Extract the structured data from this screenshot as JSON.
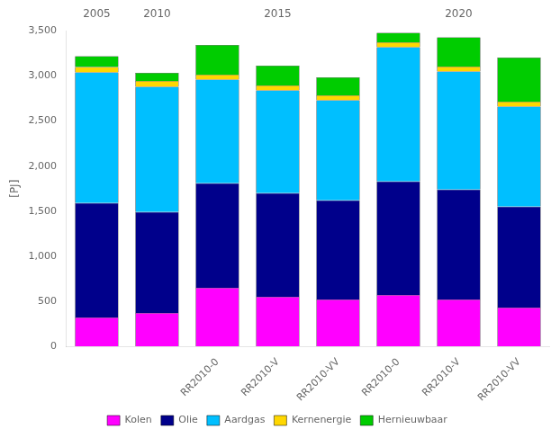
{
  "chart_data": {
    "type": "bar",
    "stacked": true,
    "categories": [
      null,
      null,
      "RR2010-0",
      "RR2010-V",
      "RR2010-VV",
      "RR2010-0",
      "RR2010-V",
      "RR2010-VV"
    ],
    "annotations": [
      "2005",
      "2010",
      null,
      "2015",
      null,
      null,
      "2020",
      null
    ],
    "series": [
      {
        "name": "Kolen",
        "color": "#FF00FF",
        "values": [
          320,
          370,
          650,
          550,
          520,
          570,
          520,
          430
        ]
      },
      {
        "name": "Olie",
        "color": "#00008B",
        "values": [
          1270,
          1120,
          1160,
          1150,
          1100,
          1260,
          1220,
          1120
        ]
      },
      {
        "name": "Aardgas",
        "color": "#00BFFF",
        "values": [
          1450,
          1390,
          1150,
          1140,
          1110,
          1490,
          1310,
          1110
        ]
      },
      {
        "name": "Kernenergie",
        "color": "#FFD700",
        "values": [
          60,
          65,
          55,
          55,
          55,
          55,
          55,
          55
        ]
      },
      {
        "name": "Hernieuwbaar",
        "color": "#00CC00",
        "values": [
          120,
          90,
          330,
          220,
          200,
          105,
          325,
          490
        ]
      }
    ],
    "ylabel": "[PJ]",
    "ylim": [
      0,
      3500
    ],
    "yticks": [
      0,
      500,
      1000,
      1500,
      2000,
      2500,
      3000,
      3500
    ],
    "grid": false,
    "legend": "bottom"
  }
}
